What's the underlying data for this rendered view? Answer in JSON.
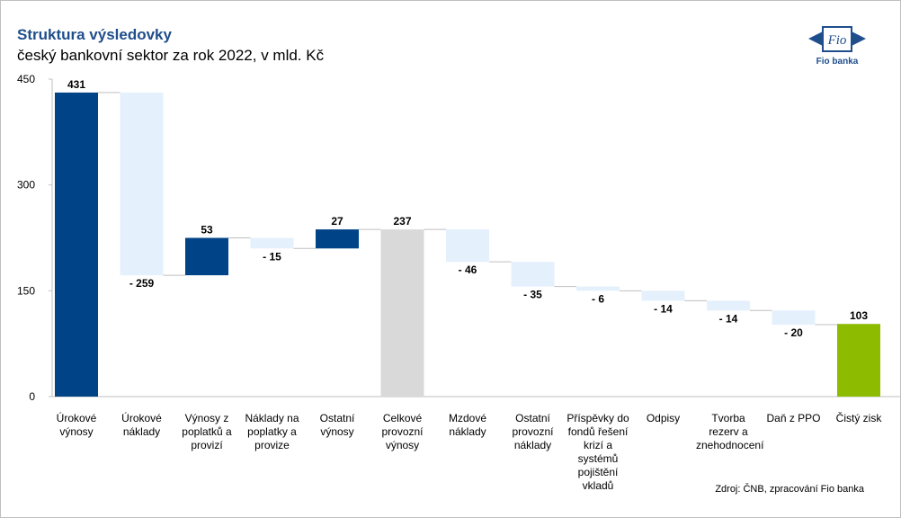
{
  "chart_data": {
    "type": "waterfall",
    "title": "Struktura výsledovky",
    "subtitle": "český bankovní sektor za rok 2022, v mld. Kč",
    "source": "Zdroj: ČNB, zpracování Fio banka",
    "logo": {
      "mark": "Fio",
      "name": "Fio banka"
    },
    "categories": [
      "Úrokové výnosy",
      "Úrokové náklady",
      "Výnosy z poplatků a provizí",
      "Náklady na poplatky a provize",
      "Ostatní výnosy",
      "Celkové provozní výnosy",
      "Mzdové náklady",
      "Ostatní provozní náklady",
      "Příspěvky do fondů řešení krizí a systémů pojištění vkladů",
      "Odpisy",
      "Tvorba rezerv a znehodnocení",
      "Daň z PPO",
      "Čistý zisk"
    ],
    "values": [
      431,
      -259,
      53,
      -15,
      27,
      237,
      -46,
      -35,
      -6,
      -14,
      -14,
      -20,
      103
    ],
    "value_labels": [
      "431",
      "- 259",
      "53",
      "- 15",
      "27",
      "237",
      "- 46",
      "- 35",
      "- 6",
      "- 14",
      "- 14",
      "- 20",
      "103"
    ],
    "measure": [
      "absolute",
      "relative",
      "relative",
      "relative",
      "relative",
      "absolute",
      "relative",
      "relative",
      "relative",
      "relative",
      "relative",
      "relative",
      "absolute"
    ],
    "colors": [
      "#004387",
      "#e5f0fd",
      "#004387",
      "#e5f0fd",
      "#004387",
      "#d9d9d9",
      "#e5f0fd",
      "#e5f0fd",
      "#e5f0fd",
      "#e5f0fd",
      "#e5f0fd",
      "#e5f0fd",
      "#8dbb00"
    ],
    "ylim": [
      0,
      450
    ],
    "yticks": [
      0,
      150,
      300,
      450
    ]
  }
}
